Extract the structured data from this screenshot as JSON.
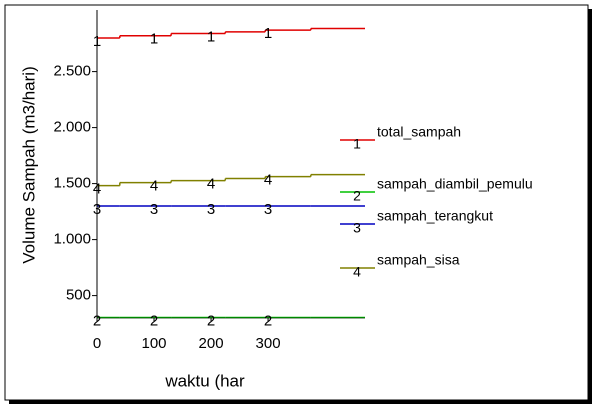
{
  "chart_data": {
    "type": "step",
    "xlabel": "waktu (har",
    "ylabel": "Volume Sampah (m3/hari)",
    "xlim": [
      0,
      470
    ],
    "xticks": [
      0,
      100,
      200,
      300
    ],
    "ylim": [
      300,
      3050
    ],
    "yticks": [
      500,
      {
        "value": 1000,
        "label": "1.000"
      },
      {
        "value": 1500,
        "label": "1.500"
      },
      {
        "value": 2000,
        "label": "2.000"
      },
      {
        "value": 2500,
        "label": "2.500"
      }
    ],
    "series": [
      {
        "name": "total_sampah",
        "label": "1",
        "color": "#e00000",
        "x": [
          0,
          40,
          130,
          225,
          295,
          375
        ],
        "values": [
          2800,
          2820,
          2840,
          2855,
          2870,
          2885
        ]
      },
      {
        "name": "sampah_diambil_pemulu",
        "label": "2",
        "color": "#00c000",
        "x": [
          0,
          40,
          130,
          225,
          295,
          375
        ],
        "values": [
          305,
          305,
          305,
          305,
          305,
          305
        ]
      },
      {
        "name": "sampah_terangkut",
        "label": "3",
        "color": "#0000c0",
        "x": [
          0,
          40,
          130,
          225,
          295,
          375
        ],
        "values": [
          1300,
          1300,
          1300,
          1300,
          1300,
          1300
        ]
      },
      {
        "name": "sampah_sisa",
        "label": "4",
        "color": "#808000",
        "x": [
          0,
          40,
          130,
          225,
          295,
          375
        ],
        "values": [
          1482,
          1509,
          1527,
          1545,
          1562,
          1580
        ]
      }
    ]
  }
}
